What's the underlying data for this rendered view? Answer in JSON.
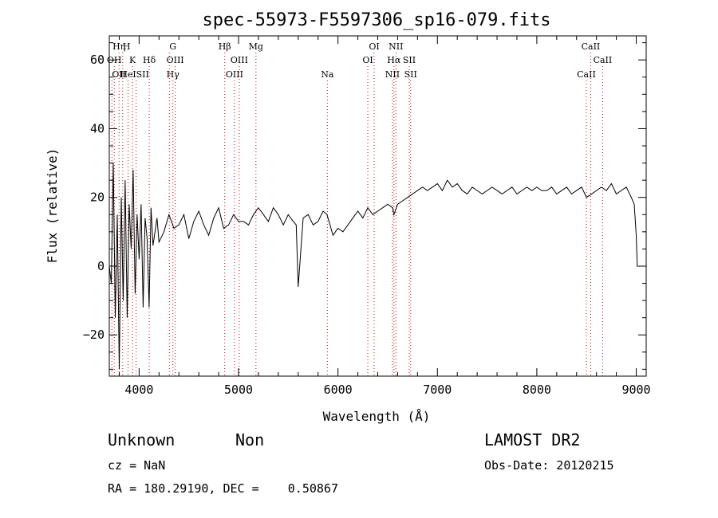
{
  "chart_data": {
    "type": "line",
    "title": "spec-55973-F5597306_sp16-079.fits",
    "xlabel": "Wavelength (Å)",
    "ylabel": "Flux (relative)",
    "xlim": [
      3700,
      9100
    ],
    "ylim": [
      -32,
      67
    ],
    "xticks": [
      4000,
      5000,
      6000,
      7000,
      8000,
      9000
    ],
    "yticks": [
      -20,
      0,
      20,
      40,
      60
    ],
    "x_minor_step": 200,
    "y_minor_step": 5,
    "grid": false,
    "line_color": "#000000",
    "marker_color": "#cc0000",
    "series": [
      {
        "x": [
          3700,
          3720,
          3740,
          3760,
          3780,
          3800,
          3820,
          3840,
          3860,
          3880,
          3900,
          3920,
          3940,
          3960,
          3980,
          4000,
          4020,
          4040,
          4060,
          4080,
          4100,
          4120,
          4140,
          4160,
          4180,
          4200,
          4250,
          4300,
          4350,
          4400,
          4450,
          4500,
          4550,
          4600,
          4650,
          4700,
          4750,
          4800,
          4850,
          4900,
          4950,
          5000,
          5050,
          5100,
          5150,
          5200,
          5250,
          5300,
          5350,
          5400,
          5450,
          5500,
          5550,
          5580,
          5600,
          5650,
          5700,
          5750,
          5800,
          5850,
          5890,
          5950,
          6000,
          6050,
          6100,
          6150,
          6200,
          6250,
          6300,
          6350,
          6400,
          6450,
          6500,
          6550,
          6563,
          6600,
          6650,
          6700,
          6750,
          6800,
          6850,
          6900,
          6950,
          7000,
          7050,
          7100,
          7150,
          7200,
          7250,
          7300,
          7350,
          7400,
          7450,
          7500,
          7550,
          7600,
          7650,
          7700,
          7750,
          7800,
          7850,
          7900,
          7950,
          8000,
          8050,
          8100,
          8150,
          8200,
          8250,
          8300,
          8350,
          8400,
          8450,
          8500,
          8550,
          8600,
          8650,
          8700,
          8750,
          8800,
          8850,
          8900,
          8950,
          8980,
          9000,
          9010,
          9020
        ],
        "y": [
          0,
          -5,
          30,
          -15,
          15,
          -30,
          20,
          -10,
          25,
          -15,
          18,
          5,
          28,
          -8,
          15,
          2,
          18,
          -12,
          14,
          8,
          -12,
          17,
          6,
          10,
          14,
          7,
          10,
          15,
          11,
          12,
          15,
          8,
          13,
          16,
          12,
          9,
          14,
          17,
          11,
          12,
          15,
          13,
          13,
          12,
          15,
          17,
          15,
          13,
          17,
          15,
          12,
          15,
          13,
          12,
          -6,
          14,
          15,
          12,
          13,
          16,
          15,
          9,
          11,
          10,
          12,
          14,
          16,
          14,
          17,
          15,
          16,
          17,
          18,
          17,
          15,
          18,
          19,
          20,
          21,
          22,
          23,
          22,
          23,
          24,
          22,
          25,
          23,
          24,
          22,
          21,
          23,
          22,
          21,
          22,
          23,
          22,
          21,
          22,
          23,
          21,
          22,
          23,
          22,
          23,
          22,
          22,
          23,
          21,
          22,
          23,
          21,
          22,
          23,
          20,
          21,
          22,
          23,
          22,
          24,
          21,
          22,
          23,
          20,
          18,
          9,
          0,
          0
        ]
      }
    ],
    "line_markers": [
      {
        "wl": 3726,
        "label": "OII",
        "row": 3,
        "anchor": "start"
      },
      {
        "wl": 3750,
        "label": "OH",
        "row": 2,
        "anchor": "middle"
      },
      {
        "wl": 3798,
        "label": "Hη",
        "row": 1,
        "anchor": "middle"
      },
      {
        "wl": 3835,
        "label": "H",
        "row": 1,
        "anchor": "start"
      },
      {
        "wl": 3889,
        "label": "HeI",
        "row": 3,
        "anchor": "middle"
      },
      {
        "wl": 3934,
        "label": "K",
        "row": 2,
        "anchor": "middle"
      },
      {
        "wl": 3970,
        "label": "SII",
        "row": 3,
        "anchor": "start"
      },
      {
        "wl": 4102,
        "label": "Hδ",
        "row": 2,
        "anchor": "middle"
      },
      {
        "wl": 4304,
        "label": "G",
        "row": 1,
        "anchor": "start"
      },
      {
        "wl": 4340,
        "label": "Hγ",
        "row": 3,
        "anchor": "middle"
      },
      {
        "wl": 4363,
        "label": "OIII",
        "row": 2,
        "anchor": "middle"
      },
      {
        "wl": 4861,
        "label": "Hβ",
        "row": 1,
        "anchor": "middle"
      },
      {
        "wl": 4959,
        "label": "OIII",
        "row": 3,
        "anchor": "middle"
      },
      {
        "wl": 5007,
        "label": "OIII",
        "row": 2,
        "anchor": "middle"
      },
      {
        "wl": 5175,
        "label": "Mg",
        "row": 1,
        "anchor": "middle"
      },
      {
        "wl": 5893,
        "label": "Na",
        "row": 3,
        "anchor": "middle"
      },
      {
        "wl": 6300,
        "label": "OI",
        "row": 2,
        "anchor": "middle"
      },
      {
        "wl": 6364,
        "label": "OI",
        "row": 1,
        "anchor": "middle"
      },
      {
        "wl": 6548,
        "label": "NII",
        "row": 3,
        "anchor": "middle"
      },
      {
        "wl": 6563,
        "label": "Hα",
        "row": 2,
        "anchor": "middle"
      },
      {
        "wl": 6583,
        "label": "NII",
        "row": 1,
        "anchor": "middle"
      },
      {
        "wl": 6717,
        "label": "SII",
        "row": 2,
        "anchor": "middle"
      },
      {
        "wl": 6731,
        "label": "SII",
        "row": 3,
        "anchor": "middle"
      },
      {
        "wl": 8498,
        "label": "CaII",
        "row": 3,
        "anchor": "middle"
      },
      {
        "wl": 8542,
        "label": "CaII",
        "row": 1,
        "anchor": "middle"
      },
      {
        "wl": 8662,
        "label": "CaII",
        "row": 2,
        "anchor": "middle"
      }
    ]
  },
  "info": {
    "class": "Unknown",
    "subclass": "Non",
    "cz": "cz = NaN",
    "radec": "RA = 180.29190, DEC =    0.50867",
    "survey": "LAMOST DR2",
    "obsdate": "Obs-Date: 20120215"
  }
}
